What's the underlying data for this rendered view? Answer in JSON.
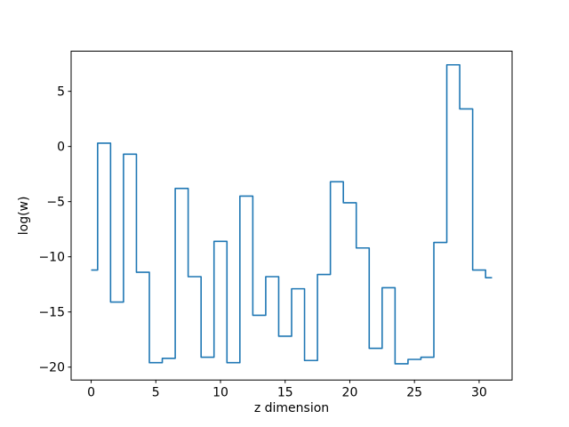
{
  "chart_data": {
    "type": "line",
    "step_where": "mid",
    "title": "",
    "xlabel": "z dimension",
    "ylabel": "log(w)",
    "x": [
      0,
      1,
      2,
      3,
      4,
      5,
      6,
      7,
      8,
      9,
      10,
      11,
      12,
      13,
      14,
      15,
      16,
      17,
      18,
      19,
      20,
      21,
      22,
      23,
      24,
      25,
      26,
      27,
      28,
      29,
      30,
      31
    ],
    "values": [
      -11.2,
      0.3,
      -14.1,
      -0.7,
      -11.4,
      -19.6,
      -19.2,
      -3.8,
      -11.8,
      -19.1,
      -8.6,
      -19.6,
      -4.5,
      -15.3,
      -11.8,
      -17.2,
      -12.9,
      -19.4,
      -11.6,
      -3.2,
      -5.1,
      -9.2,
      -18.3,
      -12.8,
      -19.7,
      -19.3,
      -19.1,
      -8.7,
      7.4,
      3.4,
      -11.2,
      -11.9
    ],
    "x_ticks": {
      "values": [
        0,
        5,
        10,
        15,
        20,
        25,
        30
      ],
      "labels": [
        "0",
        "5",
        "10",
        "15",
        "20",
        "25",
        "30"
      ]
    },
    "y_ticks": {
      "values": [
        5,
        0,
        -5,
        -10,
        -15,
        -20
      ],
      "labels": [
        "5",
        "0",
        "−5",
        "−10",
        "−15",
        "−20"
      ]
    },
    "xlim": [
      -1.55,
      32.55
    ],
    "ylim": [
      -21.17,
      8.64
    ],
    "grid": false,
    "legend": null,
    "line_color": "#1f77b4",
    "spine_color": "#000000"
  }
}
